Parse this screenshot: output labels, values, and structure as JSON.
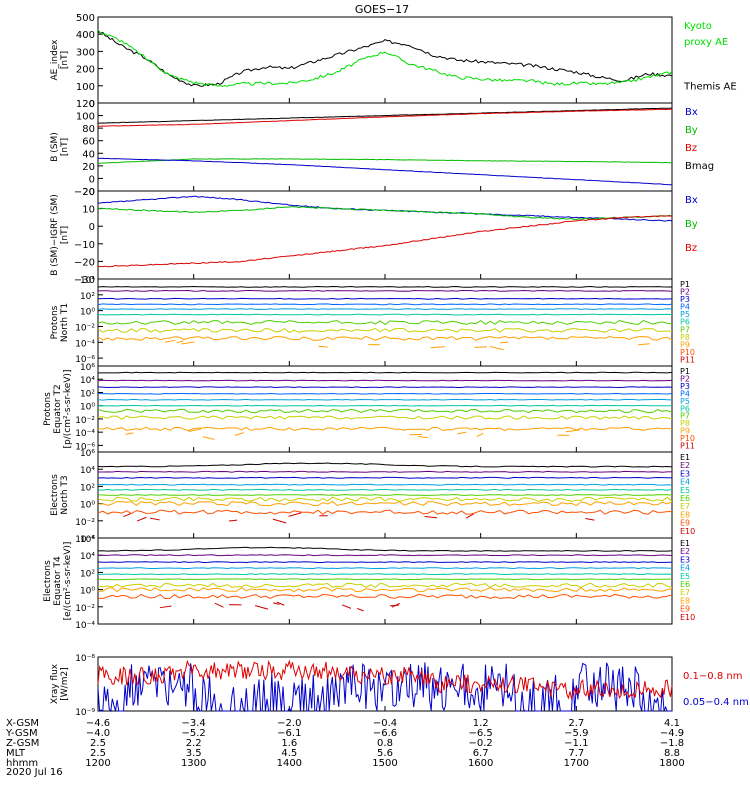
{
  "title": "GOES−17",
  "x_axis": {
    "rows": [
      {
        "label": "X-GSM",
        "values": [
          "−4.6",
          "−3.4",
          "−2.0",
          "−0.4",
          "1.2",
          "2.7",
          "4.1"
        ]
      },
      {
        "label": "Y-GSM",
        "values": [
          "−4.0",
          "−5.2",
          "−6.1",
          "−6.6",
          "−6.5",
          "−5.9",
          "−4.9"
        ]
      },
      {
        "label": "Z-GSM",
        "values": [
          "2.5",
          "2.2",
          "1.6",
          "0.8",
          "−0.2",
          "−1.1",
          "−1.8"
        ]
      },
      {
        "label": "MLT",
        "values": [
          "2.5",
          "3.5",
          "4.5",
          "5.6",
          "6.7",
          "7.7",
          "8.8"
        ]
      },
      {
        "label": "hhmm",
        "values": [
          "1200",
          "1300",
          "1400",
          "1500",
          "1600",
          "1700",
          "1800"
        ]
      }
    ],
    "date": "2020 Jul 16"
  },
  "chart_data": [
    {
      "type": "line",
      "ylabel": [
        "AE_index",
        "[nT]"
      ],
      "yticks": [
        "0",
        "100",
        "200",
        "300",
        "400",
        "500"
      ],
      "ylim": [
        0,
        500
      ],
      "legend": [
        {
          "text": "Kyoto",
          "color": "#00dd00"
        },
        {
          "text": "proxy AE",
          "color": "#00dd00"
        },
        {
          "text": "Themis AE",
          "color": "#000000"
        }
      ],
      "x": [
        1200,
        1215,
        1230,
        1245,
        1300,
        1315,
        1330,
        1345,
        1400,
        1415,
        1430,
        1445,
        1500,
        1515,
        1530,
        1545,
        1600,
        1615,
        1630,
        1645,
        1700,
        1715,
        1730,
        1745,
        1800
      ],
      "series": [
        {
          "name": "Themis AE",
          "color": "#000000",
          "values": [
            420,
            330,
            260,
            160,
            100,
            110,
            180,
            210,
            200,
            240,
            280,
            320,
            360,
            340,
            280,
            250,
            240,
            230,
            220,
            200,
            180,
            150,
            130,
            170,
            160
          ]
        },
        {
          "name": "Kyoto proxy AE",
          "color": "#00dd00",
          "values": [
            420,
            360,
            260,
            160,
            120,
            100,
            110,
            115,
            115,
            140,
            180,
            250,
            300,
            230,
            190,
            150,
            140,
            130,
            130,
            110,
            115,
            110,
            120,
            150,
            180
          ]
        }
      ]
    },
    {
      "type": "line",
      "ylabel": [
        "B (SM)",
        "[nT]"
      ],
      "yticks": [
        "−20",
        "0",
        "20",
        "40",
        "60",
        "80",
        "100",
        "120"
      ],
      "ylim": [
        -20,
        120
      ],
      "legend": [
        {
          "text": "Bx",
          "color": "#0000cc"
        },
        {
          "text": "By",
          "color": "#00bb00"
        },
        {
          "text": "Bz",
          "color": "#dd0000"
        },
        {
          "text": "Bmag",
          "color": "#000000"
        }
      ],
      "x": [
        1200,
        1300,
        1400,
        1500,
        1600,
        1700,
        1800
      ],
      "series": [
        {
          "name": "Bmag",
          "color": "#000000",
          "values": [
            88,
            92,
            96,
            100,
            104,
            108,
            112
          ]
        },
        {
          "name": "Bz",
          "color": "#dd0000",
          "values": [
            83,
            86,
            92,
            98,
            103,
            107,
            110
          ]
        },
        {
          "name": "By",
          "color": "#00bb00",
          "values": [
            24,
            31,
            31,
            30,
            28,
            27,
            25
          ]
        },
        {
          "name": "Bx",
          "color": "#0000cc",
          "values": [
            32,
            28,
            22,
            14,
            6,
            -2,
            -10
          ]
        }
      ]
    },
    {
      "type": "line",
      "ylabel": [
        "B (SM)−IGRF (SM)",
        "[nT]"
      ],
      "yticks": [
        "−30",
        "−20",
        "−10",
        "0",
        "10",
        "20"
      ],
      "ylim": [
        -30,
        20
      ],
      "legend": [
        {
          "text": "Bx",
          "color": "#0000cc"
        },
        {
          "text": "By",
          "color": "#00bb00"
        },
        {
          "text": "Bz",
          "color": "#dd0000"
        }
      ],
      "x": [
        1200,
        1230,
        1300,
        1330,
        1400,
        1430,
        1500,
        1530,
        1600,
        1630,
        1700,
        1730,
        1800
      ],
      "series": [
        {
          "name": "Bx",
          "color": "#0000cc",
          "values": [
            13,
            15,
            17,
            15,
            12,
            10,
            9,
            8,
            7,
            6,
            5,
            4,
            3
          ]
        },
        {
          "name": "By",
          "color": "#00bb00",
          "values": [
            10,
            9,
            8,
            9,
            11,
            10,
            9,
            8,
            7,
            5,
            4,
            5,
            6
          ]
        },
        {
          "name": "Bz",
          "color": "#dd0000",
          "values": [
            -23,
            -22,
            -21,
            -20,
            -17,
            -14,
            -11,
            -7,
            -3,
            0,
            3,
            5,
            6
          ]
        }
      ]
    },
    {
      "type": "line",
      "log": true,
      "ylabel": [
        "Protons",
        "North T1"
      ],
      "yticks": [
        "10⁻⁶",
        "10⁻⁴",
        "10⁻²",
        "10⁰",
        "10²",
        "10⁴"
      ],
      "ylim_exp": [
        -7,
        4
      ],
      "legend": [
        {
          "text": "P1",
          "color": "#000000"
        },
        {
          "text": "P2",
          "color": "#6a0080"
        },
        {
          "text": "P3",
          "color": "#0000cc"
        },
        {
          "text": "P4",
          "color": "#0066ff"
        },
        {
          "text": "P5",
          "color": "#00a0e0"
        },
        {
          "text": "P6",
          "color": "#00c8a0"
        },
        {
          "text": "P7",
          "color": "#50d000"
        },
        {
          "text": "P8",
          "color": "#c8d000"
        },
        {
          "text": "P9",
          "color": "#ffa000"
        },
        {
          "text": "P10",
          "color": "#ff5000"
        },
        {
          "text": "P11",
          "color": "#cc0000"
        }
      ],
      "series_exp": [
        3.0,
        2.5,
        1.5,
        0.8,
        0.2,
        -0.5,
        -1.5,
        -2.5,
        -3.5
      ]
    },
    {
      "type": "line",
      "log": true,
      "ylabel": [
        "Protons",
        "Equator T2",
        "[p/(cm²-s-sr-keV)]"
      ],
      "yticks": [
        "10⁻⁶",
        "10⁻⁴",
        "10⁻²",
        "10⁰",
        "10²",
        "10⁴",
        "10⁶"
      ],
      "ylim_exp": [
        -7,
        6
      ],
      "legend": [
        {
          "text": "P1",
          "color": "#000000"
        },
        {
          "text": "P2",
          "color": "#6a0080"
        },
        {
          "text": "P3",
          "color": "#0000cc"
        },
        {
          "text": "P4",
          "color": "#0066ff"
        },
        {
          "text": "P5",
          "color": "#00a0e0"
        },
        {
          "text": "P6",
          "color": "#00c8a0"
        },
        {
          "text": "P7",
          "color": "#50d000"
        },
        {
          "text": "P8",
          "color": "#c8d000"
        },
        {
          "text": "P9",
          "color": "#ffa000"
        },
        {
          "text": "P10",
          "color": "#ff5000"
        },
        {
          "text": "P11",
          "color": "#cc0000"
        }
      ],
      "series_exp": [
        5.0,
        3.8,
        2.8,
        1.8,
        0.9,
        0.0,
        -0.8,
        -1.8,
        -3.5
      ]
    },
    {
      "type": "line",
      "log": true,
      "ylabel": [
        "Electrons",
        "North T3"
      ],
      "yticks": [
        "10⁻⁴",
        "10⁻²",
        "10⁰",
        "10²",
        "10⁴",
        "10⁶"
      ],
      "ylim_exp": [
        -4,
        6
      ],
      "legend": [
        {
          "text": "E1",
          "color": "#000000"
        },
        {
          "text": "E2",
          "color": "#6a0080"
        },
        {
          "text": "E3",
          "color": "#0000cc"
        },
        {
          "text": "E4",
          "color": "#00a0e0"
        },
        {
          "text": "E5",
          "color": "#00c8a0"
        },
        {
          "text": "E6",
          "color": "#50d000"
        },
        {
          "text": "E7",
          "color": "#c8d000"
        },
        {
          "text": "E8",
          "color": "#ffa000"
        },
        {
          "text": "E9",
          "color": "#ff5000"
        },
        {
          "text": "E10",
          "color": "#cc0000"
        }
      ],
      "series_exp": [
        4.3,
        3.7,
        3.0,
        2.2,
        1.6,
        1.0,
        0.5,
        0.0,
        -1.0
      ]
    },
    {
      "type": "line",
      "log": true,
      "ylabel": [
        "Electrons",
        "Equator T4",
        "[e/(cm²-s-sr-keV)]"
      ],
      "yticks": [
        "10⁻⁴",
        "10⁻²",
        "10⁰",
        "10²",
        "10⁴",
        "10⁶"
      ],
      "ylim_exp": [
        -4,
        6
      ],
      "legend": [
        {
          "text": "E1",
          "color": "#000000"
        },
        {
          "text": "E2",
          "color": "#6a0080"
        },
        {
          "text": "E3",
          "color": "#0000cc"
        },
        {
          "text": "E4",
          "color": "#00a0e0"
        },
        {
          "text": "E5",
          "color": "#00c8a0"
        },
        {
          "text": "E6",
          "color": "#50d000"
        },
        {
          "text": "E7",
          "color": "#c8d000"
        },
        {
          "text": "E8",
          "color": "#ffa000"
        },
        {
          "text": "E9",
          "color": "#ff5000"
        },
        {
          "text": "E10",
          "color": "#cc0000"
        }
      ],
      "series_exp": [
        4.5,
        4.0,
        3.2,
        2.5,
        1.8,
        1.2,
        0.5,
        0.0,
        -0.8
      ]
    },
    {
      "type": "line",
      "log": true,
      "ylabel": [
        "Xray flux",
        "[W/m2]"
      ],
      "yticks": [
        "10⁻⁸",
        "10⁻⁹"
      ],
      "ylim_exp": [
        -9,
        -8
      ],
      "legend": [
        {
          "text": "0.1−0.8 nm",
          "color": "#dd0000"
        },
        {
          "text": "0.05−0.4 nm",
          "color": "#0000cc"
        }
      ],
      "series_exp": [
        -8.3,
        -8.9
      ]
    }
  ]
}
